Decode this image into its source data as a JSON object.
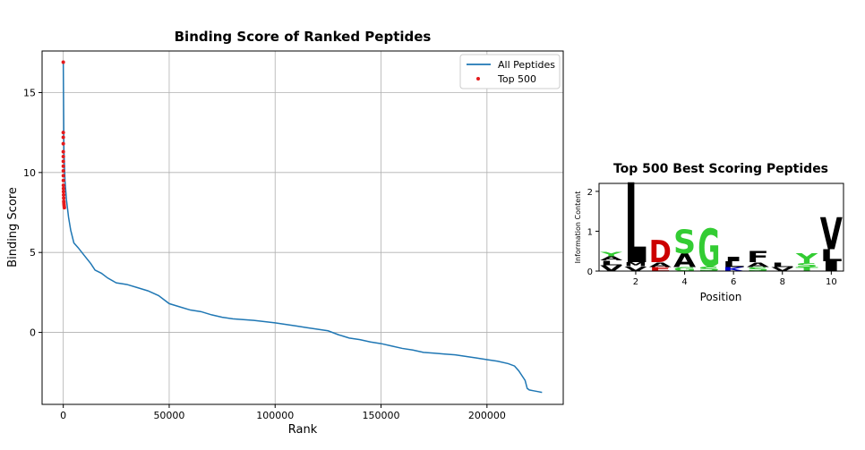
{
  "chart_data": [
    {
      "type": "line",
      "title": "Binding Score of Ranked Peptides",
      "xlabel": "Rank",
      "ylabel": "Binding Score",
      "xlim": [
        -10000,
        236000
      ],
      "ylim": [
        -4.5,
        17.6
      ],
      "grid": true,
      "legend_position": "top-right",
      "x_ticks": [
        0,
        50000,
        100000,
        150000,
        200000
      ],
      "x_tick_labels": [
        "0",
        "50000",
        "100000",
        "150000",
        "200000"
      ],
      "y_ticks": [
        0,
        5,
        10,
        15
      ],
      "y_tick_labels": [
        "0",
        "5",
        "10",
        "15"
      ],
      "series": [
        {
          "name": "All Peptides",
          "kind": "line",
          "color": "#1f77b4",
          "x": [
            0,
            300,
            800,
            1500,
            2500,
            3500,
            5000,
            7000,
            10000,
            13000,
            15000,
            18000,
            21000,
            25000,
            30000,
            35000,
            40000,
            45000,
            50000,
            55000,
            60000,
            65000,
            70000,
            75000,
            80000,
            90000,
            100000,
            105000,
            110000,
            115000,
            120000,
            125000,
            130000,
            135000,
            140000,
            145000,
            150000,
            155000,
            160000,
            165000,
            170000,
            175000,
            180000,
            185000,
            190000,
            195000,
            200000,
            205000,
            210000,
            213000,
            215000,
            217000,
            218000,
            219000,
            220000,
            222000,
            224000,
            226000
          ],
          "y": [
            16.9,
            11.5,
            9.5,
            8.3,
            7.2,
            6.4,
            5.6,
            5.3,
            4.8,
            4.3,
            3.9,
            3.7,
            3.4,
            3.1,
            3.0,
            2.8,
            2.6,
            2.3,
            1.8,
            1.6,
            1.4,
            1.3,
            1.1,
            0.95,
            0.85,
            0.75,
            0.6,
            0.5,
            0.4,
            0.3,
            0.2,
            0.1,
            -0.15,
            -0.35,
            -0.45,
            -0.6,
            -0.7,
            -0.85,
            -1.0,
            -1.1,
            -1.25,
            -1.3,
            -1.35,
            -1.4,
            -1.5,
            -1.6,
            -1.7,
            -1.8,
            -1.95,
            -2.1,
            -2.4,
            -2.8,
            -3.0,
            -3.5,
            -3.6,
            -3.65,
            -3.7,
            -3.75
          ]
        },
        {
          "name": "Top 500",
          "kind": "scatter",
          "color": "#e41a1c",
          "x": [
            0,
            1,
            2,
            3,
            5,
            8,
            12,
            18,
            25,
            35,
            50,
            70,
            95,
            125,
            160,
            200,
            250,
            300,
            360,
            430,
            499
          ],
          "y": [
            16.9,
            12.5,
            12.2,
            11.8,
            11.3,
            11.0,
            10.7,
            10.4,
            10.1,
            9.8,
            9.5,
            9.2,
            9.0,
            8.8,
            8.6,
            8.4,
            8.2,
            8.1,
            8.0,
            7.9,
            7.8
          ]
        }
      ]
    },
    {
      "type": "sequence-logo",
      "title": "Top 500 Best Scoring Peptides",
      "xlabel": "Position",
      "ylabel": "Information Content",
      "xlim": [
        0.5,
        10.5
      ],
      "ylim": [
        0,
        2.2
      ],
      "x_ticks": [
        2,
        4,
        6,
        8,
        10
      ],
      "x_tick_labels": [
        "2",
        "4",
        "6",
        "8",
        "10"
      ],
      "y_ticks": [
        0,
        1,
        2
      ],
      "y_tick_labels": [
        "0",
        "1",
        "2"
      ],
      "positions": [
        {
          "position": 1,
          "letters": [
            {
              "aa": "V",
              "height": 0.15,
              "color": "#000000"
            },
            {
              "aa": "L",
              "height": 0.12,
              "color": "#000000"
            },
            {
              "aa": "A",
              "height": 0.1,
              "color": "#000000"
            },
            {
              "aa": "Y",
              "height": 0.12,
              "color": "#33cc33"
            }
          ]
        },
        {
          "position": 2,
          "letters": [
            {
              "aa": "V",
              "height": 0.12,
              "color": "#000000"
            },
            {
              "aa": "M",
              "height": 0.1,
              "color": "#000000"
            },
            {
              "aa": "L",
              "height": 2.0,
              "color": "#000000"
            }
          ]
        },
        {
          "position": 3,
          "letters": [
            {
              "aa": "E",
              "height": 0.1,
              "color": "#cc0000"
            },
            {
              "aa": "A",
              "height": 0.12,
              "color": "#000000"
            },
            {
              "aa": "D",
              "height": 0.55,
              "color": "#cc0000"
            }
          ]
        },
        {
          "position": 4,
          "letters": [
            {
              "aa": "G",
              "height": 0.1,
              "color": "#33cc33"
            },
            {
              "aa": "A",
              "height": 0.35,
              "color": "#000000"
            },
            {
              "aa": "S",
              "height": 0.6,
              "color": "#33cc33"
            }
          ]
        },
        {
          "position": 5,
          "letters": [
            {
              "aa": "S",
              "height": 0.12,
              "color": "#33cc33"
            },
            {
              "aa": "G",
              "height": 0.95,
              "color": "#33cc33"
            }
          ]
        },
        {
          "position": 6,
          "letters": [
            {
              "aa": "K",
              "height": 0.1,
              "color": "#0000cc"
            },
            {
              "aa": "L",
              "height": 0.15,
              "color": "#000000"
            },
            {
              "aa": "I",
              "height": 0.12,
              "color": "#000000"
            }
          ]
        },
        {
          "position": 7,
          "letters": [
            {
              "aa": "S",
              "height": 0.1,
              "color": "#33cc33"
            },
            {
              "aa": "A",
              "height": 0.12,
              "color": "#000000"
            },
            {
              "aa": "F",
              "height": 0.28,
              "color": "#000000"
            }
          ]
        },
        {
          "position": 8,
          "letters": [
            {
              "aa": "V",
              "height": 0.1,
              "color": "#000000"
            },
            {
              "aa": "L",
              "height": 0.12,
              "color": "#000000"
            }
          ]
        },
        {
          "position": 9,
          "letters": [
            {
              "aa": "T",
              "height": 0.1,
              "color": "#33cc33"
            },
            {
              "aa": "S",
              "height": 0.1,
              "color": "#33cc33"
            },
            {
              "aa": "Y",
              "height": 0.25,
              "color": "#33cc33"
            }
          ]
        },
        {
          "position": 10,
          "letters": [
            {
              "aa": "I",
              "height": 0.25,
              "color": "#000000"
            },
            {
              "aa": "L",
              "height": 0.3,
              "color": "#000000"
            },
            {
              "aa": "V",
              "height": 0.8,
              "color": "#000000"
            }
          ]
        }
      ]
    }
  ]
}
